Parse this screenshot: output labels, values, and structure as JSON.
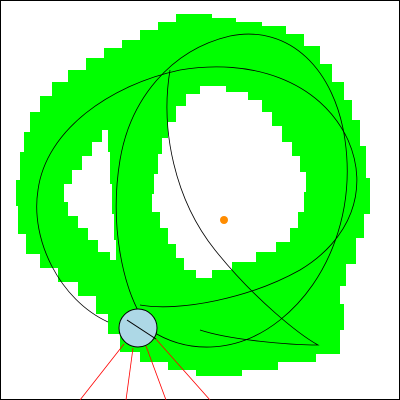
{
  "scene": {
    "title": "",
    "colors": {
      "background": "#ffffff",
      "border": "#000000",
      "coverage": "#00ff00",
      "path": "#000000",
      "target": "#ff8c00",
      "robot_fill": "#add8e6",
      "robot_stroke": "#000000",
      "sensor_rays": "#ff0000"
    },
    "icons": {
      "robot": "circle-robot-icon",
      "target": "dot-target-icon"
    },
    "robot": {
      "heading_deg": 35,
      "sensor_ray_count": 4
    }
  }
}
